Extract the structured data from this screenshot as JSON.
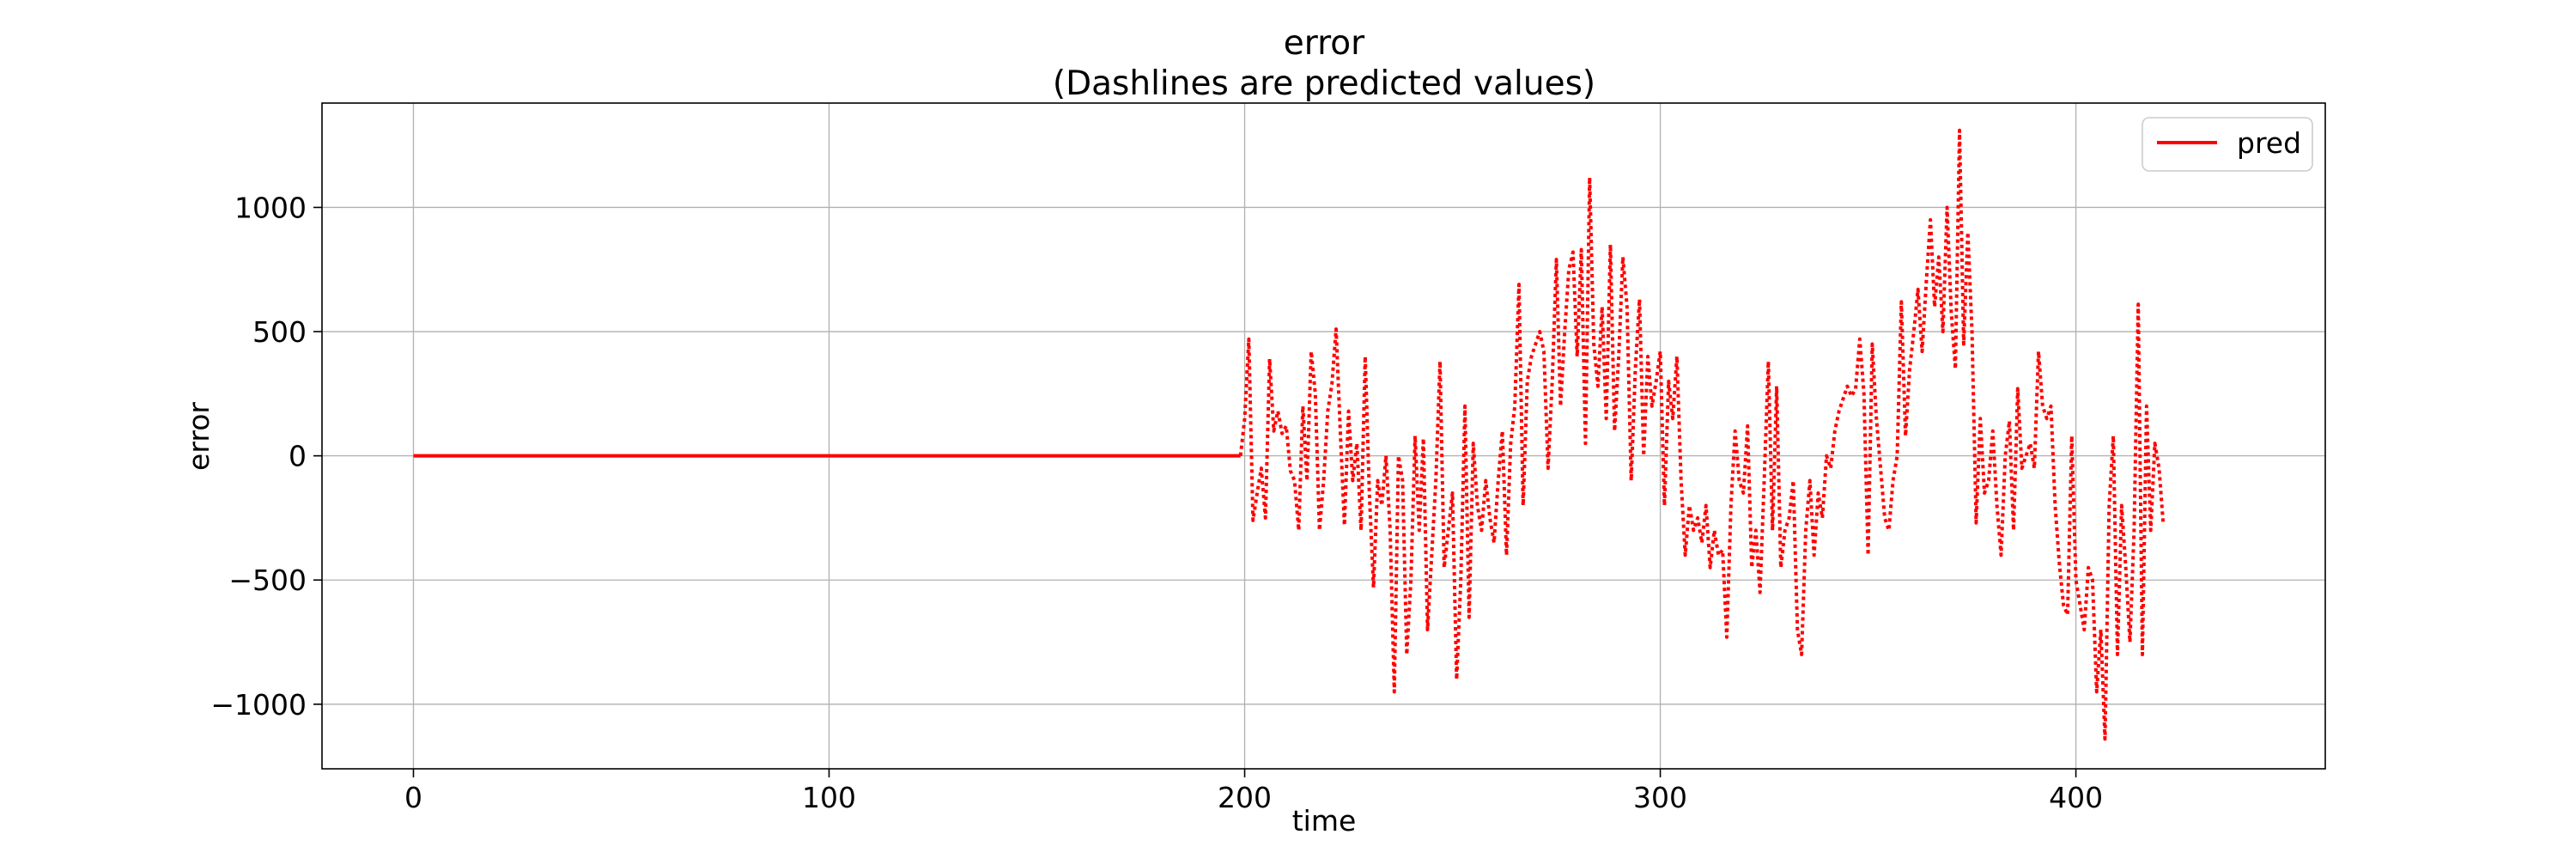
{
  "chart_data": {
    "type": "line",
    "title": "error",
    "subtitle": "(Dashlines are predicted values)",
    "xlabel": "time",
    "ylabel": "error",
    "xlim": [
      -22,
      460
    ],
    "ylim": [
      -1260,
      1420
    ],
    "x_ticks": [
      0,
      100,
      200,
      300,
      400
    ],
    "y_ticks": [
      -1000,
      -500,
      0,
      500,
      1000
    ],
    "x_tick_labels": [
      "0",
      "100",
      "200",
      "300",
      "400"
    ],
    "y_tick_labels": [
      "−1000",
      "−500",
      "0",
      "500",
      "1000"
    ],
    "grid": true,
    "legend": {
      "placement": "top-right",
      "entries": [
        "pred"
      ]
    },
    "colors": {
      "series": "#ff0000",
      "grid": "#b0b0b0",
      "axes": "#000000"
    },
    "series": [
      {
        "name": "pred",
        "style": "solid",
        "x": [
          0,
          199
        ],
        "y": [
          0,
          0
        ]
      },
      {
        "style": "dotted",
        "x_start": 199,
        "x_step": 1,
        "y": [
          0,
          150,
          470,
          -260,
          -150,
          -50,
          -250,
          390,
          100,
          180,
          90,
          120,
          -60,
          -100,
          -300,
          200,
          -100,
          420,
          250,
          -300,
          -100,
          180,
          290,
          510,
          100,
          -280,
          180,
          -100,
          50,
          -300,
          400,
          -150,
          -530,
          -100,
          -200,
          0,
          -300,
          -950,
          0,
          -100,
          -800,
          -500,
          80,
          -300,
          70,
          -700,
          -400,
          -100,
          380,
          -450,
          -300,
          -150,
          -900,
          -500,
          200,
          -650,
          50,
          -200,
          -300,
          -100,
          -250,
          -350,
          -100,
          100,
          -400,
          50,
          200,
          690,
          -200,
          300,
          400,
          450,
          500,
          420,
          -50,
          300,
          790,
          200,
          500,
          750,
          820,
          400,
          830,
          50,
          1120,
          450,
          280,
          600,
          150,
          850,
          100,
          400,
          800,
          600,
          -100,
          350,
          630,
          0,
          400,
          200,
          300,
          420,
          -200,
          300,
          150,
          400,
          -100,
          -400,
          -200,
          -300,
          -250,
          -350,
          -200,
          -450,
          -300,
          -400,
          -380,
          -730,
          -200,
          100,
          -100,
          -150,
          120,
          -450,
          -300,
          -550,
          -100,
          380,
          -300,
          280,
          -450,
          -300,
          -250,
          -100,
          -700,
          -800,
          -300,
          -100,
          -400,
          -150,
          -250,
          0,
          -50,
          100,
          180,
          230,
          280,
          240,
          270,
          470,
          250,
          -400,
          450,
          150,
          -50,
          -250,
          -300,
          -100,
          0,
          620,
          80,
          350,
          500,
          670,
          420,
          700,
          950,
          600,
          800,
          500,
          1000,
          580,
          350,
          1310,
          450,
          900,
          500,
          -270,
          150,
          -150,
          -100,
          100,
          -200,
          -400,
          0,
          140,
          -300,
          270,
          -50,
          0,
          50,
          -50,
          420,
          200,
          150,
          200,
          -200,
          -430,
          -600,
          -640,
          80,
          -500,
          -600,
          -700,
          -450,
          -500,
          -950,
          -700,
          -1140,
          -200,
          80,
          -800,
          -200,
          -450,
          -750,
          -300,
          610,
          -800,
          200,
          -300,
          50,
          -50,
          -270
        ]
      }
    ]
  }
}
